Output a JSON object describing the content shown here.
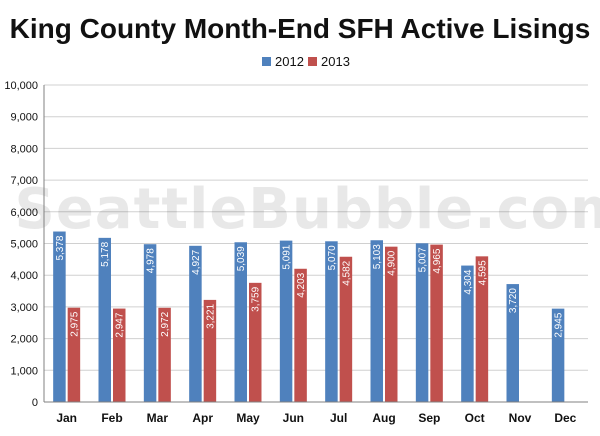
{
  "chart_data": {
    "type": "bar",
    "title": "King County Month-End SFH Active Lisings",
    "categories": [
      "Jan",
      "Feb",
      "Mar",
      "Apr",
      "May",
      "Jun",
      "Jul",
      "Aug",
      "Sep",
      "Oct",
      "Nov",
      "Dec"
    ],
    "series": [
      {
        "name": "2012",
        "color": "#4f81bd",
        "values": [
          5378,
          5178,
          4978,
          4927,
          5039,
          5091,
          5070,
          5103,
          5007,
          4304,
          3720,
          2945
        ],
        "labels": [
          "5,378",
          "5,178",
          "4,978",
          "4,927",
          "5,039",
          "5,091",
          "5,070",
          "5,103",
          "5,007",
          "4,304",
          "3,720",
          "2,945"
        ]
      },
      {
        "name": "2013",
        "color": "#c0504d",
        "values": [
          2975,
          2947,
          2972,
          3221,
          3759,
          4203,
          4582,
          4900,
          4965,
          4595,
          null,
          null
        ],
        "labels": [
          "2,975",
          "2,947",
          "2,972",
          "3,221",
          "3,759",
          "4,203",
          "4,582",
          "4,900",
          "4,965",
          "4,595",
          "",
          ""
        ]
      }
    ],
    "ylim": [
      0,
      10000
    ],
    "yticks": [
      0,
      1000,
      2000,
      3000,
      4000,
      5000,
      6000,
      7000,
      8000,
      9000,
      10000
    ],
    "ytick_labels": [
      "0",
      "1,000",
      "2,000",
      "3,000",
      "4,000",
      "5,000",
      "6,000",
      "7,000",
      "8,000",
      "9,000",
      "10,000"
    ],
    "grid": true,
    "legend_position": "top-center",
    "watermark": "SeattleBubble.com"
  }
}
